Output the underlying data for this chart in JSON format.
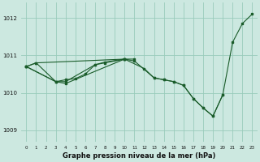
{
  "title": "Graphe pression niveau de la mer (hPa)",
  "background_color": "#cce8e0",
  "grid_color": "#99ccbb",
  "line_color": "#1a5c2a",
  "xlim": [
    -0.5,
    23.5
  ],
  "ylim": [
    1008.7,
    1012.4
  ],
  "yticks": [
    1009,
    1010,
    1011,
    1012
  ],
  "xticks": [
    0,
    1,
    2,
    3,
    4,
    5,
    6,
    7,
    8,
    9,
    10,
    11,
    12,
    13,
    14,
    15,
    16,
    17,
    18,
    19,
    20,
    21,
    22,
    23
  ],
  "series": [
    {
      "x": [
        0,
        1,
        10
      ],
      "y": [
        1010.7,
        1010.8,
        1010.9
      ]
    },
    {
      "x": [
        0,
        1,
        3,
        4,
        7,
        8,
        10,
        11
      ],
      "y": [
        1010.7,
        1010.8,
        1010.3,
        1010.3,
        1010.75,
        1010.8,
        1010.9,
        1010.9
      ]
    },
    {
      "x": [
        0,
        3,
        4,
        10,
        11,
        13,
        14,
        15,
        16,
        17,
        18,
        19,
        20
      ],
      "y": [
        1010.7,
        1010.3,
        1010.25,
        1010.9,
        1010.85,
        1010.4,
        1010.35,
        1010.3,
        1010.2,
        1009.85,
        1009.6,
        1009.38,
        1009.95
      ]
    },
    {
      "x": [
        0,
        3,
        4,
        5,
        6,
        7,
        8,
        10,
        12,
        13,
        14,
        15,
        16,
        17,
        18,
        19,
        20,
        21,
        22,
        23
      ],
      "y": [
        1010.7,
        1010.3,
        1010.35,
        1010.38,
        1010.5,
        1010.75,
        1010.82,
        1010.9,
        1010.65,
        1010.4,
        1010.35,
        1010.3,
        1010.2,
        1009.85,
        1009.6,
        1009.38,
        1009.95,
        1011.35,
        1011.85,
        1012.1
      ]
    }
  ]
}
